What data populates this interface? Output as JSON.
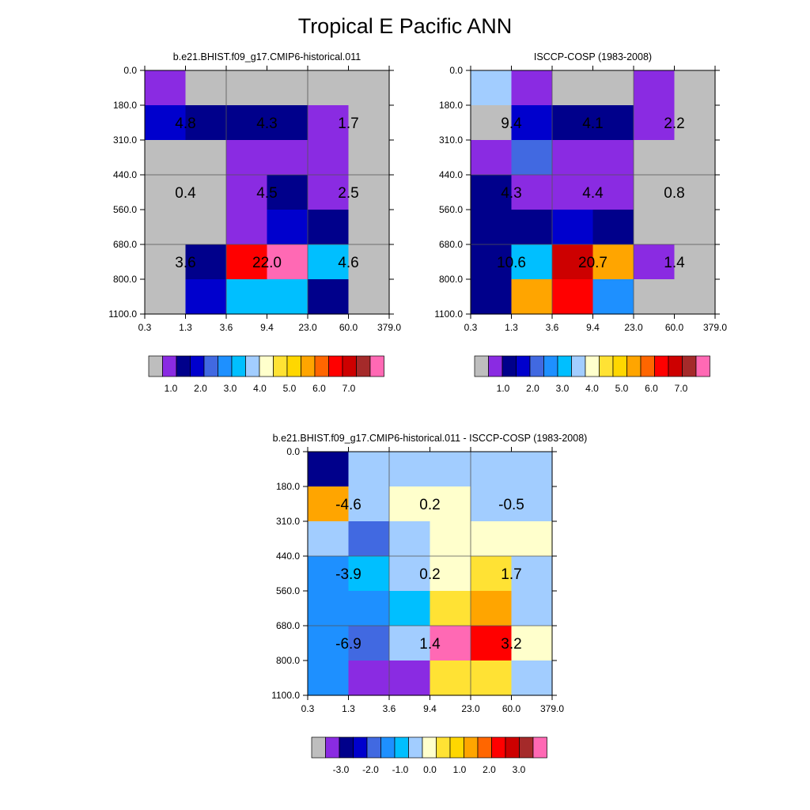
{
  "title": "Tropical E Pacific ANN",
  "x_ticks": [
    "0.3",
    "1.3",
    "3.6",
    "9.4",
    "23.0",
    "60.0",
    "379.0"
  ],
  "y_ticks": [
    "0.0",
    "180.0",
    "310.0",
    "440.0",
    "560.0",
    "680.0",
    "800.0",
    "1100.0"
  ],
  "colors": {
    "abs": [
      "#bebebe",
      "#8a2be2",
      "#00008b",
      "#0000cd",
      "#4169e1",
      "#1e90ff",
      "#00bfff",
      "#a2cdff",
      "#ffffcc",
      "#ffe234",
      "#ffd700",
      "#ffa500",
      "#ff6600",
      "#ff0000",
      "#cd0000",
      "#a52a2a",
      "#ff69b4"
    ],
    "diff": [
      "#bebebe",
      "#8a2be2",
      "#00008b",
      "#0000cd",
      "#4169e1",
      "#1e90ff",
      "#00bfff",
      "#a2cdff",
      "#ffffcc",
      "#ffe234",
      "#ffd700",
      "#ffa500",
      "#ff6600",
      "#ff0000",
      "#cd0000",
      "#a52a2a",
      "#ff69b4"
    ]
  },
  "chart_data": [
    {
      "type": "heatmap",
      "title": "b.e21.BHIST.f09_g17.CMIP6-historical.011",
      "x_tick_labels": [
        "0.3",
        "1.3",
        "3.6",
        "9.4",
        "23.0",
        "60.0",
        "379.0"
      ],
      "y_tick_labels": [
        "0.0",
        "180.0",
        "310.0",
        "440.0",
        "560.0",
        "680.0",
        "800.0",
        "1100.0"
      ],
      "cell_colors": [
        [
          "#8a2be2",
          "#bebebe",
          "#bebebe",
          "#bebebe",
          "#bebebe",
          "#bebebe"
        ],
        [
          "#0000cd",
          "#00008b",
          "#00008b",
          "#00008b",
          "#8a2be2",
          "#bebebe"
        ],
        [
          "#bebebe",
          "#bebebe",
          "#8a2be2",
          "#8a2be2",
          "#8a2be2",
          "#bebebe"
        ],
        [
          "#bebebe",
          "#bebebe",
          "#8a2be2",
          "#00008b",
          "#8a2be2",
          "#bebebe"
        ],
        [
          "#bebebe",
          "#bebebe",
          "#8a2be2",
          "#0000cd",
          "#00008b",
          "#bebebe"
        ],
        [
          "#bebebe",
          "#00008b",
          "#ff0000",
          "#ff69b4",
          "#00bfff",
          "#bebebe"
        ],
        [
          "#bebebe",
          "#0000cd",
          "#00bfff",
          "#00bfff",
          "#00008b",
          "#bebebe"
        ]
      ],
      "group_labels": [
        [
          "4.8",
          "4.3",
          "1.7"
        ],
        [
          "0.4",
          "4.5",
          "2.5"
        ],
        [
          "3.6",
          "22.0",
          "4.6"
        ]
      ],
      "colorbar_labels": [
        "1.0",
        "2.0",
        "3.0",
        "4.0",
        "5.0",
        "6.0",
        "7.0"
      ]
    },
    {
      "type": "heatmap",
      "title": "ISCCP-COSP (1983-2008)",
      "x_tick_labels": [
        "0.3",
        "1.3",
        "3.6",
        "9.4",
        "23.0",
        "60.0",
        "379.0"
      ],
      "y_tick_labels": [
        "0.0",
        "180.0",
        "310.0",
        "440.0",
        "560.0",
        "680.0",
        "800.0",
        "1100.0"
      ],
      "cell_colors": [
        [
          "#a2cdff",
          "#8a2be2",
          "#bebebe",
          "#bebebe",
          "#8a2be2",
          "#bebebe"
        ],
        [
          "#bebebe",
          "#0000cd",
          "#00008b",
          "#00008b",
          "#8a2be2",
          "#bebebe"
        ],
        [
          "#8a2be2",
          "#4169e1",
          "#8a2be2",
          "#8a2be2",
          "#bebebe",
          "#bebebe"
        ],
        [
          "#00008b",
          "#8a2be2",
          "#8a2be2",
          "#8a2be2",
          "#bebebe",
          "#bebebe"
        ],
        [
          "#00008b",
          "#00008b",
          "#0000cd",
          "#00008b",
          "#bebebe",
          "#bebebe"
        ],
        [
          "#00008b",
          "#00bfff",
          "#cd0000",
          "#ffa500",
          "#8a2be2",
          "#bebebe"
        ],
        [
          "#00008b",
          "#ffa500",
          "#ff0000",
          "#1e90ff",
          "#bebebe",
          "#bebebe"
        ]
      ],
      "group_labels": [
        [
          "9.4",
          "4.1",
          "2.2"
        ],
        [
          "4.3",
          "4.4",
          "0.8"
        ],
        [
          "10.6",
          "20.7",
          "1.4"
        ]
      ],
      "colorbar_labels": [
        "1.0",
        "2.0",
        "3.0",
        "4.0",
        "5.0",
        "6.0",
        "7.0"
      ]
    },
    {
      "type": "heatmap",
      "title": "b.e21.BHIST.f09_g17.CMIP6-historical.011 - ISCCP-COSP (1983-2008)",
      "x_tick_labels": [
        "0.3",
        "1.3",
        "3.6",
        "9.4",
        "23.0",
        "60.0",
        "379.0"
      ],
      "y_tick_labels": [
        "0.0",
        "180.0",
        "310.0",
        "440.0",
        "560.0",
        "680.0",
        "800.0",
        "1100.0"
      ],
      "cell_colors": [
        [
          "#00008b",
          "#a2cdff",
          "#a2cdff",
          "#a2cdff",
          "#a2cdff",
          "#a2cdff"
        ],
        [
          "#ffa500",
          "#a2cdff",
          "#ffffcc",
          "#ffffcc",
          "#a2cdff",
          "#a2cdff"
        ],
        [
          "#a2cdff",
          "#4169e1",
          "#a2cdff",
          "#ffffcc",
          "#ffffcc",
          "#ffffcc"
        ],
        [
          "#1e90ff",
          "#00bfff",
          "#a2cdff",
          "#ffffcc",
          "#ffe234",
          "#a2cdff"
        ],
        [
          "#1e90ff",
          "#1e90ff",
          "#00bfff",
          "#ffe234",
          "#ffa500",
          "#a2cdff"
        ],
        [
          "#1e90ff",
          "#4169e1",
          "#a2cdff",
          "#ff69b4",
          "#ff0000",
          "#ffffcc"
        ],
        [
          "#1e90ff",
          "#8a2be2",
          "#8a2be2",
          "#ffe234",
          "#ffe234",
          "#a2cdff"
        ]
      ],
      "group_labels": [
        [
          "-4.6",
          "0.2",
          "-0.5"
        ],
        [
          "-3.9",
          "0.2",
          "1.7"
        ],
        [
          "-6.9",
          "1.4",
          "3.2"
        ]
      ],
      "colorbar_labels": [
        "-3.0",
        "-2.0",
        "-1.0",
        "0.0",
        "1.0",
        "2.0",
        "3.0"
      ]
    }
  ]
}
